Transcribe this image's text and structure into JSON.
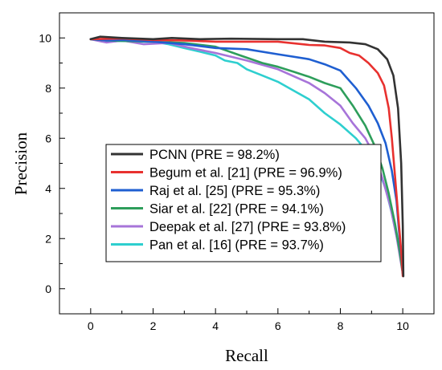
{
  "chart_data": {
    "type": "line",
    "title": "",
    "xlabel": "Recall",
    "ylabel": "Precision",
    "xlim": [
      -1,
      11
    ],
    "ylim": [
      -1,
      11
    ],
    "xticks": [
      0,
      2,
      4,
      6,
      8,
      10
    ],
    "yticks": [
      0,
      2,
      4,
      6,
      8,
      10
    ],
    "legend_position": "center-left",
    "grid": false,
    "series": [
      {
        "name": "PCNN (PRE = 98.2%)",
        "color": "#333333",
        "x": [
          0,
          0.3,
          1,
          2,
          2.6,
          3.5,
          4.5,
          6,
          6.8,
          7.5,
          8.3,
          8.8,
          9.2,
          9.5,
          9.7,
          9.85,
          9.95,
          10.0,
          10.02
        ],
        "y": [
          9.95,
          10.05,
          10.0,
          9.95,
          10.0,
          9.95,
          9.97,
          9.95,
          9.95,
          9.85,
          9.82,
          9.75,
          9.55,
          9.15,
          8.5,
          7.2,
          5.0,
          2.5,
          0.5
        ]
      },
      {
        "name": "Begum et al. [21] (PRE = 96.9%)",
        "color": "#e8312f",
        "x": [
          0,
          1,
          2,
          3,
          4,
          5,
          6,
          7,
          7.5,
          8,
          8.3,
          8.6,
          8.9,
          9.2,
          9.4,
          9.55,
          9.65,
          9.75,
          9.85,
          9.95,
          10.0
        ],
        "y": [
          9.95,
          9.98,
          9.92,
          9.9,
          9.85,
          9.85,
          9.85,
          9.72,
          9.7,
          9.6,
          9.4,
          9.3,
          9.0,
          8.6,
          8.1,
          7.2,
          6.0,
          4.5,
          3.0,
          1.5,
          0.5
        ]
      },
      {
        "name": "Raj et al. [25] (PRE = 95.3%)",
        "color": "#1f5fd1",
        "x": [
          0,
          0.5,
          1,
          2,
          3,
          4,
          5,
          6,
          7,
          7.5,
          8,
          8.5,
          8.9,
          9.2,
          9.45,
          9.65,
          9.8,
          9.9,
          10.0
        ],
        "y": [
          9.95,
          9.9,
          9.92,
          9.85,
          9.75,
          9.6,
          9.55,
          9.35,
          9.15,
          8.95,
          8.7,
          8.0,
          7.3,
          6.6,
          5.8,
          4.7,
          3.5,
          2.0,
          0.7
        ]
      },
      {
        "name": "Siar et al. [22] (PRE = 94.1%)",
        "color": "#2e9e5b",
        "x": [
          0,
          0.5,
          1,
          2,
          3,
          4,
          4.8,
          5.5,
          6,
          6.5,
          7,
          7.5,
          8,
          8.4,
          8.8,
          9.1,
          9.35,
          9.55,
          9.75,
          9.9,
          10.0
        ],
        "y": [
          9.95,
          9.9,
          9.88,
          9.85,
          9.8,
          9.65,
          9.3,
          9.0,
          8.85,
          8.65,
          8.45,
          8.2,
          8.0,
          7.3,
          6.5,
          5.7,
          4.8,
          3.8,
          2.6,
          1.5,
          0.6
        ]
      },
      {
        "name": "Deepak et al. [27] (PRE = 93.8%)",
        "color": "#a774d9",
        "x": [
          0,
          0.5,
          1,
          1.7,
          2.5,
          3.2,
          4,
          5,
          6,
          7,
          7.5,
          8,
          8.4,
          8.8,
          9.1,
          9.35,
          9.6,
          9.8,
          10.0
        ],
        "y": [
          9.95,
          9.82,
          9.9,
          9.75,
          9.8,
          9.6,
          9.4,
          9.1,
          8.75,
          8.2,
          7.8,
          7.3,
          6.6,
          6.0,
          5.3,
          4.4,
          3.3,
          2.1,
          0.6
        ]
      },
      {
        "name": "Pan et al. [16] (PRE = 93.7%)",
        "color": "#2ecfcf",
        "x": [
          0,
          0.5,
          1,
          1.5,
          2,
          2.5,
          3,
          3.5,
          4,
          4.3,
          4.7,
          5,
          5.5,
          6,
          6.5,
          7,
          7.5,
          8,
          8.5,
          8.9,
          9.2,
          9.45,
          9.65,
          9.85,
          10.0
        ],
        "y": [
          9.95,
          9.85,
          9.88,
          9.85,
          9.85,
          9.75,
          9.6,
          9.45,
          9.3,
          9.1,
          9.0,
          8.75,
          8.5,
          8.25,
          7.9,
          7.55,
          7.0,
          6.55,
          6.0,
          5.4,
          4.8,
          4.0,
          3.0,
          1.8,
          0.7
        ]
      }
    ]
  }
}
